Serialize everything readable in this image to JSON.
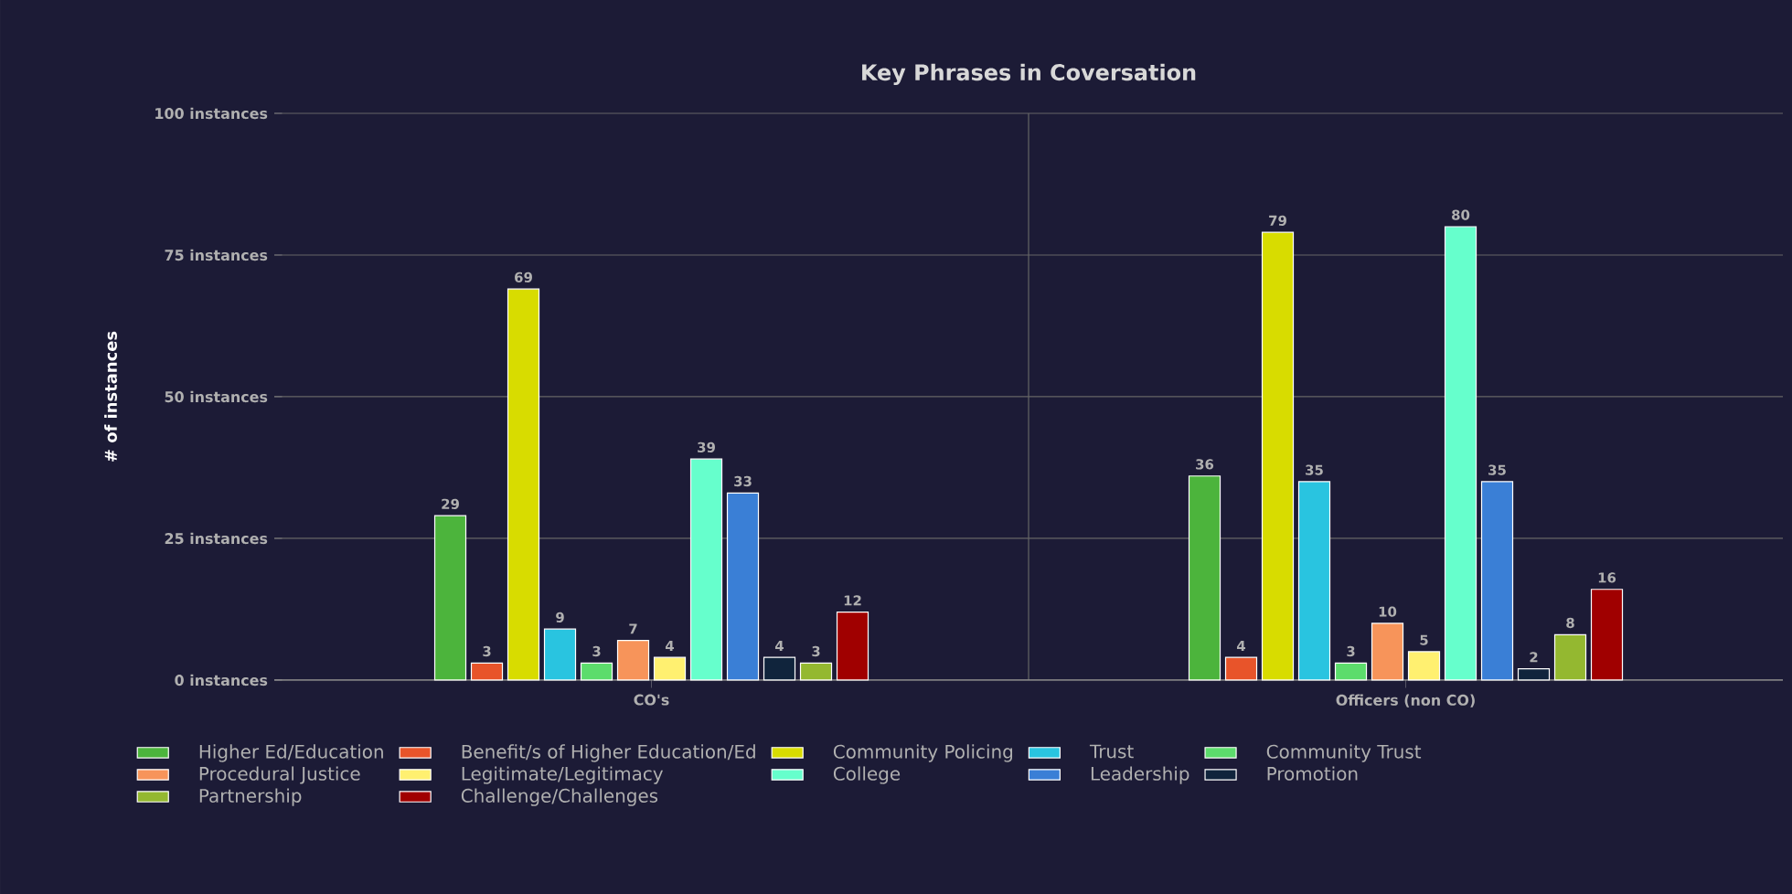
{
  "chart_data": {
    "type": "bar",
    "title": "Key Phrases in Coversation",
    "ylabel": "# of instances",
    "categories": [
      "CO's",
      "Officers (non CO)"
    ],
    "ylim": [
      0,
      100
    ],
    "yticks": [
      {
        "value": 0,
        "label": "0 instances"
      },
      {
        "value": 25,
        "label": "25 instances"
      },
      {
        "value": 50,
        "label": "50 instances"
      },
      {
        "value": 75,
        "label": "75 instances"
      },
      {
        "value": 100,
        "label": "100 instances"
      }
    ],
    "grid": true,
    "legend": "bottom",
    "data_labels": true,
    "series": [
      {
        "name": "Higher Ed/Education",
        "color": "#4cb43c",
        "values": [
          29,
          36
        ]
      },
      {
        "name": "Benefit/s of Higher Education/Ed",
        "color": "#e8542a",
        "values": [
          3,
          4
        ]
      },
      {
        "name": "Community Policing",
        "color": "#d8dc00",
        "values": [
          69,
          79
        ]
      },
      {
        "name": "Trust",
        "color": "#29c4e0",
        "values": [
          9,
          35
        ]
      },
      {
        "name": "Community Trust",
        "color": "#5cdc6c",
        "values": [
          3,
          3
        ]
      },
      {
        "name": "Procedural Justice",
        "color": "#f7945a",
        "values": [
          7,
          10
        ]
      },
      {
        "name": "Legitimate/Legitimacy",
        "color": "#fff070",
        "values": [
          4,
          5
        ]
      },
      {
        "name": "College",
        "color": "#66ffcc",
        "values": [
          39,
          80
        ]
      },
      {
        "name": "Leadership",
        "color": "#3a7fd6",
        "values": [
          33,
          35
        ]
      },
      {
        "name": "Promotion",
        "color": "#10243c",
        "values": [
          4,
          2
        ]
      },
      {
        "name": "Partnership",
        "color": "#94b830",
        "values": [
          3,
          8
        ]
      },
      {
        "name": "Challenge/Challenges",
        "color": "#a00000",
        "values": [
          12,
          16
        ]
      }
    ]
  }
}
